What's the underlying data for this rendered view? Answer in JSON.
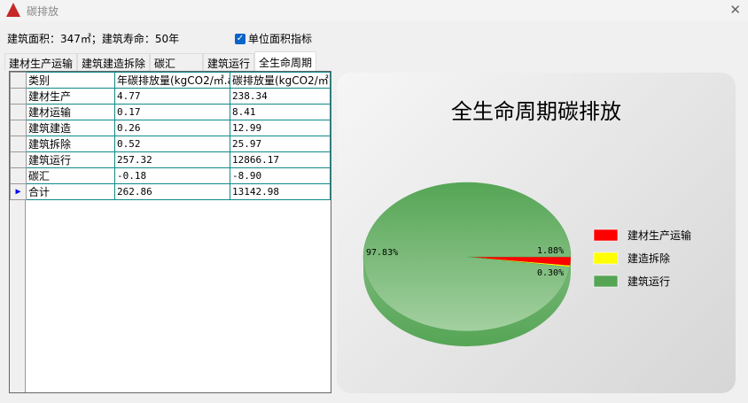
{
  "window": {
    "title": "碳排放",
    "close_icon": "close-icon"
  },
  "info": "建筑面积：347㎡；建筑寿命：50年",
  "checkbox": {
    "label": "单位面积指标",
    "checked": true
  },
  "tabs": [
    "建材生产运输",
    "建筑建造拆除",
    "碳汇",
    "建筑运行",
    "全生命周期"
  ],
  "active_tab": 4,
  "table": {
    "headers": [
      "类别",
      "年碳排放量(kgCO2/㎡.a",
      "碳排放量(kgCO2/㎡)"
    ],
    "rows": [
      [
        "建材生产",
        "4.77",
        "238.34"
      ],
      [
        "建材运输",
        "0.17",
        "8.41"
      ],
      [
        "建筑建造",
        "0.26",
        "12.99"
      ],
      [
        "建筑拆除",
        "0.52",
        "25.97"
      ],
      [
        "建筑运行",
        "257.32",
        "12866.17"
      ],
      [
        "碳汇",
        "-0.18",
        "-8.90"
      ],
      [
        "合计",
        "262.86",
        "13142.98"
      ]
    ],
    "selected_row": 6
  },
  "chart_data": {
    "type": "pie",
    "title": "全生命周期碳排放",
    "legend_position": "right",
    "slices": [
      {
        "name": "建材生产运输",
        "value": 1.88,
        "label": "1.88%",
        "color": "#ff0000"
      },
      {
        "name": "建造拆除",
        "value": 0.3,
        "label": "0.30%",
        "color": "#ffff00"
      },
      {
        "name": "建筑运行",
        "value": 97.83,
        "label": "97.83%",
        "color": "#55a555"
      }
    ]
  }
}
